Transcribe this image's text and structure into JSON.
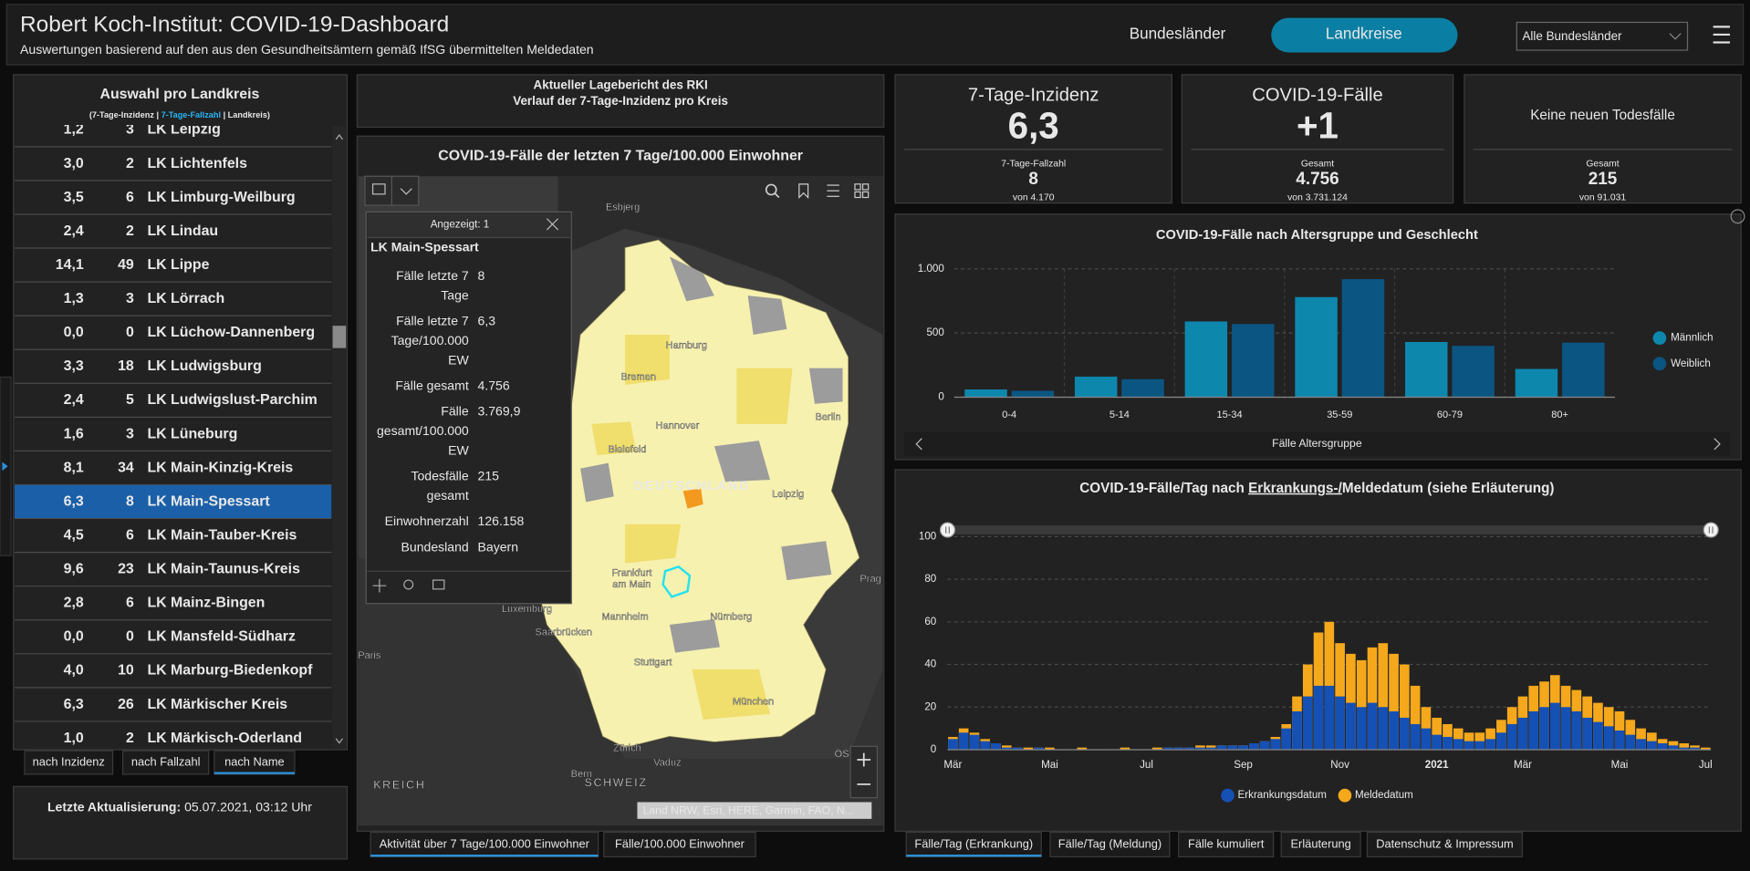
{
  "header": {
    "title": "Robert Koch-Institut: COVID-19-Dashboard",
    "subtitle": "Auswertungen basierend auf den aus den Gesundheitsämtern gemäß IfSG übermittelten Meldedaten"
  },
  "nav": [
    "Bundesländer",
    "Landkreise",
    "Alle Bundesländer"
  ],
  "nav_active": 1,
  "sidebar": {
    "title": "Auswahl pro Landkreis",
    "subtitle_parts": [
      "(7-Tage-Inzidenz | ",
      "7-Tage-Fallzahl",
      " | Landkreis)"
    ],
    "rows": [
      [
        "1,2",
        "3",
        "LK Leipzig"
      ],
      [
        "3,0",
        "2",
        "LK Lichtenfels"
      ],
      [
        "3,5",
        "6",
        "LK Limburg-Weilburg"
      ],
      [
        "2,4",
        "2",
        "LK Lindau"
      ],
      [
        "14,1",
        "49",
        "LK Lippe"
      ],
      [
        "1,3",
        "3",
        "LK Lörrach"
      ],
      [
        "0,0",
        "0",
        "LK Lüchow-Dannenberg"
      ],
      [
        "3,3",
        "18",
        "LK Ludwigsburg"
      ],
      [
        "2,4",
        "5",
        "LK Ludwigslust-Parchim"
      ],
      [
        "1,6",
        "3",
        "LK Lüneburg"
      ],
      [
        "8,1",
        "34",
        "LK Main-Kinzig-Kreis"
      ],
      [
        "6,3",
        "8",
        "LK Main-Spessart"
      ],
      [
        "4,5",
        "6",
        "LK Main-Tauber-Kreis"
      ],
      [
        "9,6",
        "23",
        "LK Main-Taunus-Kreis"
      ],
      [
        "2,8",
        "6",
        "LK Mainz-Bingen"
      ],
      [
        "0,0",
        "0",
        "LK Mansfeld-Südharz"
      ],
      [
        "4,0",
        "10",
        "LK Marburg-Biedenkopf"
      ],
      [
        "6,3",
        "26",
        "LK Märkischer Kreis"
      ],
      [
        "1,0",
        "2",
        "LK Märkisch-Oderland"
      ]
    ],
    "selected_row": 11,
    "sort_buttons": [
      "nach Inzidenz",
      "nach Fallzahl",
      "nach Name"
    ],
    "sort_active": 2,
    "update_parts": [
      "Letzte Aktualisierung: ",
      "05.07.2021, 03:12 Uhr"
    ]
  },
  "report": {
    "lines": [
      "Aktueller Lagebericht des RKI",
      "Verlauf der 7-Tage-Inzidenz pro Kreis"
    ]
  },
  "map": {
    "title": "COVID-19-Fälle der letzten 7 Tage/100.000 Einwohner",
    "labels": [
      "Esbjerg",
      "Hamburg",
      "Bremen",
      "Hannover",
      "Berlin",
      "Bielefeld",
      "DEUTSCHLAND",
      "Leipzig",
      "Frankfurt",
      "am Main",
      "Mannheim",
      "Nürnberg",
      "Saarbrücken",
      "Luxemburg",
      "Stuttgart",
      "München",
      "Prag",
      "Paris",
      "Zürich",
      "Vaduz",
      "Bern",
      "SCHWEIZ",
      "KREICH",
      "ÖSTE"
    ],
    "attribution": "Land NRW, Esri, HERE, Garmin, FAO, N...",
    "popup": {
      "header": "Angezeigt: 1",
      "name": "LK Main-Spessart",
      "fields": [
        {
          "label": [
            "Fälle letzte 7",
            "Tage"
          ],
          "value": "8"
        },
        {
          "label": [
            "Fälle letzte 7",
            "Tage/100.000",
            "EW"
          ],
          "value": "6,3"
        },
        {
          "label": [
            "Fälle gesamt"
          ],
          "value": "4.756"
        },
        {
          "label": [
            "Fälle",
            "gesamt/100.000",
            "EW"
          ],
          "value": "3.769,9"
        },
        {
          "label": [
            "Todesfälle",
            "gesamt"
          ],
          "value": "215"
        },
        {
          "label": [
            "Einwohnerzahl"
          ],
          "value": "126.158"
        },
        {
          "label": [
            "Bundesland"
          ],
          "value": "Bayern"
        }
      ]
    },
    "tabs": [
      "Aktivität über 7 Tage/100.000 Einwohner",
      "Fälle/100.000 Einwohner"
    ],
    "tab_active": 0
  },
  "kpis": [
    {
      "title": "7-Tage-Inzidenz",
      "value": "6,3",
      "sub_label": "7-Tage-Fallzahl",
      "sub_value": "8",
      "sub_total": "von 4.170"
    },
    {
      "title": "COVID-19-Fälle",
      "value": "+1",
      "sub_label": "Gesamt",
      "sub_value": "4.756",
      "sub_total": "von 3.731.124"
    },
    {
      "title": "Keine neuen Todesfälle",
      "sub_label": "Gesamt",
      "sub_value": "215",
      "sub_total": "von 91.031"
    }
  ],
  "chart_data": [
    {
      "type": "bar",
      "barmode": "grouped",
      "title": "COVID-19-Fälle nach Altersgruppe und Geschlecht",
      "x_label": "Fälle Altersgruppe",
      "categories": [
        "0-4",
        "5-14",
        "15-34",
        "35-59",
        "60-79",
        "80+"
      ],
      "series": [
        {
          "name": "Männlich",
          "color": "#0e87ad",
          "values": [
            60,
            160,
            590,
            780,
            430,
            220
          ]
        },
        {
          "name": "Weiblich",
          "color": "#0b5582",
          "values": [
            50,
            140,
            570,
            920,
            400,
            425
          ]
        }
      ],
      "ylim": [
        0,
        1000
      ],
      "yticks": [
        0,
        500,
        {
          "value": 1000,
          "label": "1.000"
        }
      ],
      "grid": true,
      "legend": "right"
    },
    {
      "type": "bar",
      "barmode": "overlay",
      "title_parts": [
        "COVID-19-Fälle/Tag nach ",
        "Erkrankungs-/",
        "Meldedatum (siehe Erläuterung)"
      ],
      "categories": [
        "Mär",
        null,
        null,
        null,
        null,
        null,
        null,
        null,
        null,
        "Mai",
        null,
        null,
        null,
        null,
        null,
        null,
        null,
        null,
        "Jul",
        null,
        null,
        null,
        null,
        null,
        null,
        null,
        null,
        "Sep",
        null,
        null,
        null,
        null,
        null,
        null,
        null,
        null,
        "Nov",
        null,
        null,
        null,
        null,
        null,
        null,
        null,
        null,
        "2021",
        null,
        null,
        null,
        null,
        null,
        null,
        null,
        "Mär",
        null,
        null,
        null,
        null,
        null,
        null,
        null,
        null,
        "Mai",
        null,
        null,
        null,
        null,
        null,
        null,
        null,
        "Jul"
      ],
      "series": [
        {
          "name": "Meldedatum",
          "color": "#f5a81c",
          "values": [
            6,
            10,
            8,
            5,
            3,
            2,
            1,
            1,
            1,
            1,
            0,
            0,
            1,
            0,
            0,
            0,
            1,
            0,
            0,
            1,
            1,
            1,
            1,
            2,
            2,
            2,
            2,
            2,
            3,
            4,
            6,
            12,
            25,
            40,
            55,
            60,
            50,
            45,
            42,
            48,
            50,
            45,
            40,
            30,
            20,
            15,
            12,
            10,
            8,
            8,
            10,
            14,
            20,
            25,
            30,
            32,
            35,
            30,
            28,
            25,
            22,
            20,
            18,
            14,
            10,
            8,
            5,
            4,
            3,
            2,
            1
          ]
        },
        {
          "name": "Erkrankungsdatum",
          "color": "#1550b5",
          "values": [
            5,
            8,
            7,
            4,
            3,
            1,
            1,
            0,
            1,
            0,
            0,
            0,
            0,
            0,
            0,
            0,
            0,
            0,
            0,
            0,
            1,
            1,
            1,
            1,
            1,
            2,
            2,
            2,
            3,
            4,
            5,
            10,
            18,
            25,
            30,
            30,
            25,
            22,
            20,
            22,
            20,
            18,
            15,
            12,
            10,
            7,
            6,
            5,
            4,
            4,
            5,
            8,
            12,
            15,
            18,
            20,
            22,
            20,
            18,
            15,
            13,
            11,
            9,
            7,
            5,
            4,
            3,
            2,
            1,
            1,
            0
          ]
        }
      ],
      "legend_order": [
        1,
        0
      ],
      "ylim": [
        0,
        100
      ],
      "yticks": [
        0,
        20,
        40,
        60,
        80,
        100
      ],
      "grid": true,
      "legend": "bottom"
    }
  ],
  "bottom_tabs": [
    "Fälle/Tag (Erkrankung)",
    "Fälle/Tag (Meldung)",
    "Fälle kumuliert",
    "Erläuterung",
    "Datenschutz & Impressum"
  ],
  "bottom_tab_active": 0
}
